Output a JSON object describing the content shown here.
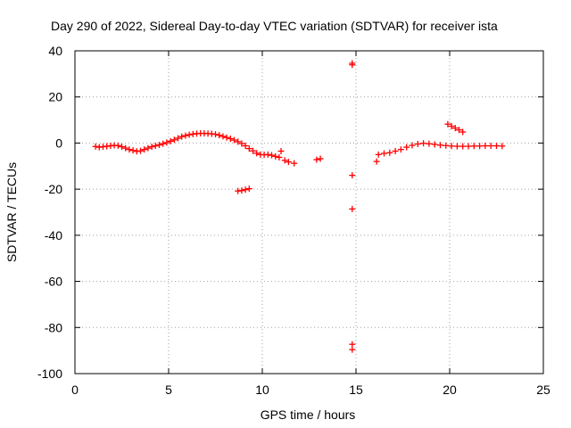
{
  "chart_data": {
    "type": "scatter",
    "title": "Day 290 of 2022, Sidereal Day-to-day VTEC variation (SDTVAR) for receiver ista",
    "xlabel": "GPS time / hours",
    "ylabel": "SDTVAR / TECUs",
    "xlim": [
      0,
      25
    ],
    "ylim": [
      -100,
      40
    ],
    "xticks": [
      0,
      5,
      10,
      15,
      20,
      25
    ],
    "yticks": [
      -100,
      -80,
      -60,
      -40,
      -20,
      0,
      20,
      40
    ],
    "xtick_labels": [
      "0",
      "5",
      "10",
      "15",
      "20",
      "25"
    ],
    "ytick_labels": [
      "-100",
      "-80",
      "-60",
      "-40",
      "-20",
      "0",
      "20",
      "40"
    ],
    "grid": true,
    "marker": "+",
    "color": "#ff0000",
    "series": [
      {
        "name": "SDTVAR",
        "x": [
          1.1,
          1.3,
          1.5,
          1.7,
          1.9,
          2.1,
          2.3,
          2.5,
          2.7,
          2.9,
          3.1,
          3.3,
          3.5,
          3.7,
          3.9,
          4.1,
          4.3,
          4.5,
          4.7,
          4.9,
          5.1,
          5.3,
          5.5,
          5.7,
          5.9,
          6.1,
          6.3,
          6.5,
          6.7,
          6.9,
          7.1,
          7.3,
          7.5,
          7.7,
          7.9,
          8.1,
          8.3,
          8.5,
          8.7,
          8.9,
          9.1,
          9.3,
          9.5,
          9.7,
          9.9,
          10.1,
          10.3,
          10.5,
          10.7,
          10.9,
          11.0,
          11.2,
          11.4,
          11.7,
          8.7,
          8.9,
          9.1,
          9.3,
          12.9,
          13.1,
          14.8,
          14.8,
          14.8,
          14.8,
          14.8,
          14.8,
          16.1,
          16.2,
          16.5,
          16.8,
          17.1,
          17.4,
          17.7,
          18.0,
          18.3,
          18.6,
          18.9,
          19.2,
          19.5,
          19.8,
          20.1,
          20.4,
          20.7,
          21.0,
          21.3,
          21.6,
          21.9,
          22.2,
          22.5,
          22.8,
          19.9,
          20.1,
          20.3,
          20.5,
          20.7
        ],
        "y": [
          -1.5,
          -1.8,
          -1.6,
          -1.4,
          -1.2,
          -1.0,
          -1.1,
          -1.6,
          -2.2,
          -2.8,
          -3.2,
          -3.6,
          -3.4,
          -2.8,
          -2.2,
          -1.6,
          -1.2,
          -0.8,
          -0.3,
          0.2,
          0.8,
          1.4,
          2.1,
          2.8,
          3.2,
          3.6,
          3.9,
          4.1,
          4.2,
          4.2,
          4.1,
          4.0,
          3.8,
          3.4,
          2.9,
          2.4,
          1.9,
          1.3,
          0.6,
          -0.2,
          -1.2,
          -2.4,
          -3.4,
          -4.4,
          -5.0,
          -5.1,
          -5.0,
          -5.3,
          -5.8,
          -6.2,
          -3.5,
          -7.5,
          -8.2,
          -8.8,
          -20.8,
          -20.6,
          -20.2,
          -19.8,
          -7.2,
          -6.8,
          34.6,
          33.9,
          -14.0,
          -28.6,
          -87.3,
          -89.6,
          -8.0,
          -5.0,
          -4.5,
          -4.2,
          -3.5,
          -2.8,
          -1.8,
          -1.0,
          -0.4,
          -0.1,
          -0.3,
          -0.6,
          -0.9,
          -1.1,
          -1.3,
          -1.4,
          -1.4,
          -1.4,
          -1.3,
          -1.3,
          -1.2,
          -1.2,
          -1.2,
          -1.3,
          8.2,
          7.3,
          6.5,
          5.7,
          4.8
        ]
      }
    ]
  }
}
